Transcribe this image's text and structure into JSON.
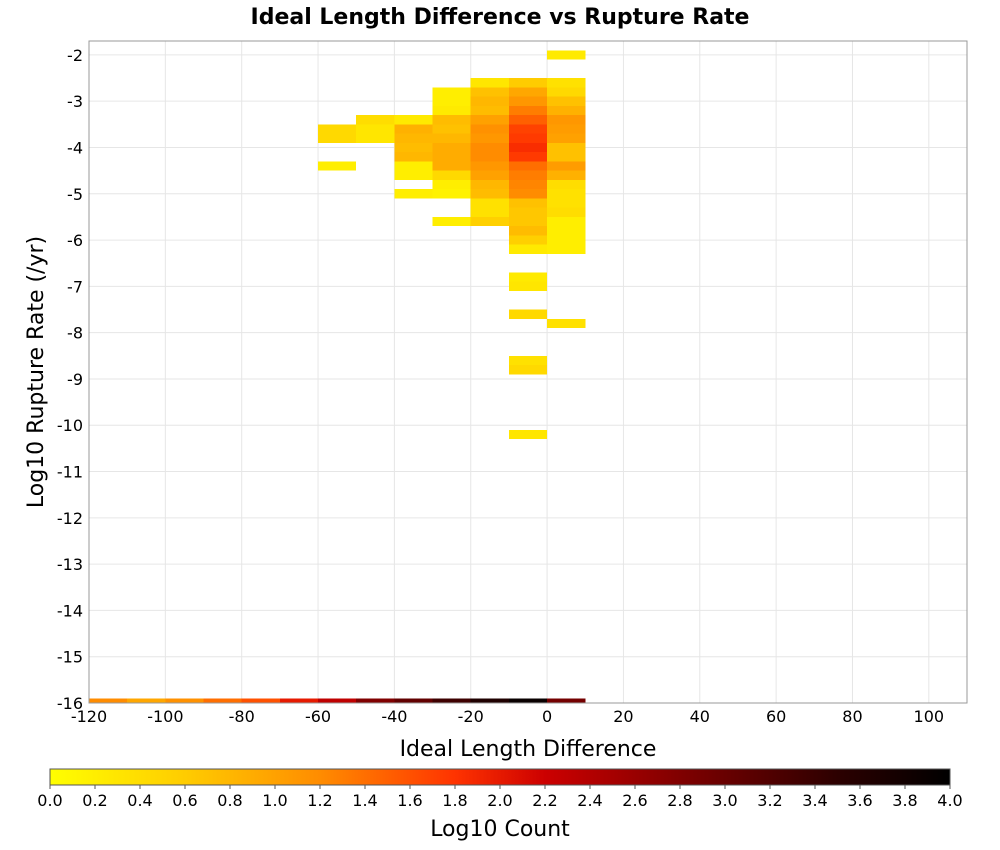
{
  "chart_data": {
    "type": "heatmap",
    "title": "Ideal Length Difference vs Rupture Rate",
    "xlabel": "Ideal Length Difference",
    "ylabel": "Log10 Rupture Rate (/yr)",
    "colorbar_label": "Log10 Count",
    "xlim": [
      -120,
      110
    ],
    "ylim": [
      -16,
      -1.7
    ],
    "x_ticks": [
      -120,
      -100,
      -80,
      -60,
      -40,
      -20,
      0,
      20,
      40,
      60,
      80,
      100
    ],
    "y_ticks": [
      -2,
      -3,
      -4,
      -5,
      -6,
      -7,
      -8,
      -9,
      -10,
      -11,
      -12,
      -13,
      -14,
      -15,
      -16
    ],
    "colorbar_range": [
      0.0,
      4.0
    ],
    "colorbar_ticks": [
      "0.0",
      "0.2",
      "0.4",
      "0.6",
      "0.8",
      "1.0",
      "1.2",
      "1.4",
      "1.6",
      "1.8",
      "2.0",
      "2.2",
      "2.4",
      "2.6",
      "2.8",
      "3.0",
      "3.2",
      "3.4",
      "3.6",
      "3.8",
      "4.0"
    ],
    "colormap": [
      "#ffff00",
      "#ffcc00",
      "#ff8c00",
      "#ff3300",
      "#cc0000",
      "#800000",
      "#2a0000",
      "#000000"
    ],
    "grid": true,
    "bin_width_x": 10,
    "bin_height_y": 0.2,
    "cells": [
      {
        "x": 0,
        "y": -2.0,
        "v": 0.25
      },
      {
        "x": -10,
        "y": -2.6,
        "v": 0.6
      },
      {
        "x": -20,
        "y": -2.6,
        "v": 0.3
      },
      {
        "x": 0,
        "y": -2.6,
        "v": 0.35
      },
      {
        "x": -10,
        "y": -2.8,
        "v": 0.95
      },
      {
        "x": -20,
        "y": -2.8,
        "v": 0.7
      },
      {
        "x": -30,
        "y": -2.8,
        "v": 0.2
      },
      {
        "x": 0,
        "y": -2.8,
        "v": 0.45
      },
      {
        "x": -10,
        "y": -3.0,
        "v": 1.1
      },
      {
        "x": -20,
        "y": -3.0,
        "v": 0.8
      },
      {
        "x": -30,
        "y": -3.0,
        "v": 0.2
      },
      {
        "x": 0,
        "y": -3.0,
        "v": 0.7
      },
      {
        "x": -10,
        "y": -3.2,
        "v": 1.3
      },
      {
        "x": -20,
        "y": -3.2,
        "v": 0.75
      },
      {
        "x": -30,
        "y": -3.2,
        "v": 0.25
      },
      {
        "x": 0,
        "y": -3.2,
        "v": 0.85
      },
      {
        "x": -10,
        "y": -3.4,
        "v": 1.5
      },
      {
        "x": -20,
        "y": -3.4,
        "v": 1.0
      },
      {
        "x": -30,
        "y": -3.4,
        "v": 0.75
      },
      {
        "x": -40,
        "y": -3.4,
        "v": 0.25
      },
      {
        "x": -50,
        "y": -3.4,
        "v": 0.4
      },
      {
        "x": 0,
        "y": -3.4,
        "v": 1.1
      },
      {
        "x": -10,
        "y": -3.6,
        "v": 1.7
      },
      {
        "x": -20,
        "y": -3.6,
        "v": 1.15
      },
      {
        "x": -30,
        "y": -3.6,
        "v": 0.7
      },
      {
        "x": -40,
        "y": -3.6,
        "v": 0.85
      },
      {
        "x": -50,
        "y": -3.6,
        "v": 0.3
      },
      {
        "x": -60,
        "y": -3.6,
        "v": 0.45
      },
      {
        "x": 0,
        "y": -3.6,
        "v": 1.05
      },
      {
        "x": -10,
        "y": -3.8,
        "v": 1.75
      },
      {
        "x": -20,
        "y": -3.8,
        "v": 1.1
      },
      {
        "x": -30,
        "y": -3.8,
        "v": 0.8
      },
      {
        "x": -40,
        "y": -3.8,
        "v": 0.8
      },
      {
        "x": -50,
        "y": -3.8,
        "v": 0.3
      },
      {
        "x": -60,
        "y": -3.8,
        "v": 0.45
      },
      {
        "x": 0,
        "y": -3.8,
        "v": 1.0
      },
      {
        "x": -10,
        "y": -4.0,
        "v": 1.85
      },
      {
        "x": -20,
        "y": -4.0,
        "v": 1.2
      },
      {
        "x": -30,
        "y": -4.0,
        "v": 0.9
      },
      {
        "x": -40,
        "y": -4.0,
        "v": 0.75
      },
      {
        "x": 0,
        "y": -4.0,
        "v": 0.7
      },
      {
        "x": -10,
        "y": -4.2,
        "v": 1.75
      },
      {
        "x": -20,
        "y": -4.2,
        "v": 1.2
      },
      {
        "x": -30,
        "y": -4.2,
        "v": 0.9
      },
      {
        "x": -40,
        "y": -4.2,
        "v": 0.8
      },
      {
        "x": 0,
        "y": -4.2,
        "v": 0.7
      },
      {
        "x": -10,
        "y": -4.4,
        "v": 1.4
      },
      {
        "x": -20,
        "y": -4.4,
        "v": 1.1
      },
      {
        "x": -30,
        "y": -4.4,
        "v": 0.9
      },
      {
        "x": -40,
        "y": -4.4,
        "v": 0.2
      },
      {
        "x": -60,
        "y": -4.4,
        "v": 0.2
      },
      {
        "x": 0,
        "y": -4.4,
        "v": 1.05
      },
      {
        "x": -10,
        "y": -4.6,
        "v": 1.3
      },
      {
        "x": -20,
        "y": -4.6,
        "v": 1.0
      },
      {
        "x": -30,
        "y": -4.6,
        "v": 0.45
      },
      {
        "x": -40,
        "y": -4.6,
        "v": 0.2
      },
      {
        "x": 0,
        "y": -4.6,
        "v": 0.85
      },
      {
        "x": -10,
        "y": -4.8,
        "v": 1.25
      },
      {
        "x": -20,
        "y": -4.8,
        "v": 0.8
      },
      {
        "x": -30,
        "y": -4.8,
        "v": 0.2
      },
      {
        "x": 0,
        "y": -4.8,
        "v": 0.4
      },
      {
        "x": -10,
        "y": -5.0,
        "v": 1.2
      },
      {
        "x": -20,
        "y": -5.0,
        "v": 0.75
      },
      {
        "x": -30,
        "y": -5.0,
        "v": 0.15
      },
      {
        "x": -40,
        "y": -5.0,
        "v": 0.2
      },
      {
        "x": 0,
        "y": -5.0,
        "v": 0.35
      },
      {
        "x": -10,
        "y": -5.2,
        "v": 0.7
      },
      {
        "x": -20,
        "y": -5.2,
        "v": 0.35
      },
      {
        "x": 0,
        "y": -5.2,
        "v": 0.35
      },
      {
        "x": -10,
        "y": -5.4,
        "v": 0.65
      },
      {
        "x": -20,
        "y": -5.4,
        "v": 0.35
      },
      {
        "x": 0,
        "y": -5.4,
        "v": 0.4
      },
      {
        "x": -10,
        "y": -5.6,
        "v": 0.65
      },
      {
        "x": -20,
        "y": -5.6,
        "v": 0.55
      },
      {
        "x": -30,
        "y": -5.6,
        "v": 0.2
      },
      {
        "x": 0,
        "y": -5.6,
        "v": 0.2
      },
      {
        "x": -10,
        "y": -5.8,
        "v": 0.75
      },
      {
        "x": 0,
        "y": -5.8,
        "v": 0.2
      },
      {
        "x": -10,
        "y": -6.0,
        "v": 0.55
      },
      {
        "x": 0,
        "y": -6.0,
        "v": 0.2
      },
      {
        "x": -10,
        "y": -6.2,
        "v": 0.25
      },
      {
        "x": 0,
        "y": -6.2,
        "v": 0.2
      },
      {
        "x": -10,
        "y": -6.8,
        "v": 0.25
      },
      {
        "x": -10,
        "y": -7.0,
        "v": 0.3
      },
      {
        "x": -10,
        "y": -7.6,
        "v": 0.45
      },
      {
        "x": 0,
        "y": -7.8,
        "v": 0.35
      },
      {
        "x": -10,
        "y": -8.6,
        "v": 0.35
      },
      {
        "x": -10,
        "y": -8.8,
        "v": 0.45
      },
      {
        "x": -10,
        "y": -10.2,
        "v": 0.3
      },
      {
        "x": -120,
        "y": -16.0,
        "v": 1.2
      },
      {
        "x": -110,
        "y": -16.0,
        "v": 0.95
      },
      {
        "x": -100,
        "y": -16.0,
        "v": 1.15
      },
      {
        "x": -90,
        "y": -16.0,
        "v": 1.4
      },
      {
        "x": -80,
        "y": -16.0,
        "v": 1.6
      },
      {
        "x": -70,
        "y": -16.0,
        "v": 2.0
      },
      {
        "x": -60,
        "y": -16.0,
        "v": 2.3
      },
      {
        "x": -50,
        "y": -16.0,
        "v": 2.8
      },
      {
        "x": -40,
        "y": -16.0,
        "v": 3.05
      },
      {
        "x": -30,
        "y": -16.0,
        "v": 3.35
      },
      {
        "x": -20,
        "y": -16.0,
        "v": 3.65
      },
      {
        "x": -10,
        "y": -16.0,
        "v": 3.9
      },
      {
        "x": 0,
        "y": -16.0,
        "v": 2.9
      }
    ]
  }
}
